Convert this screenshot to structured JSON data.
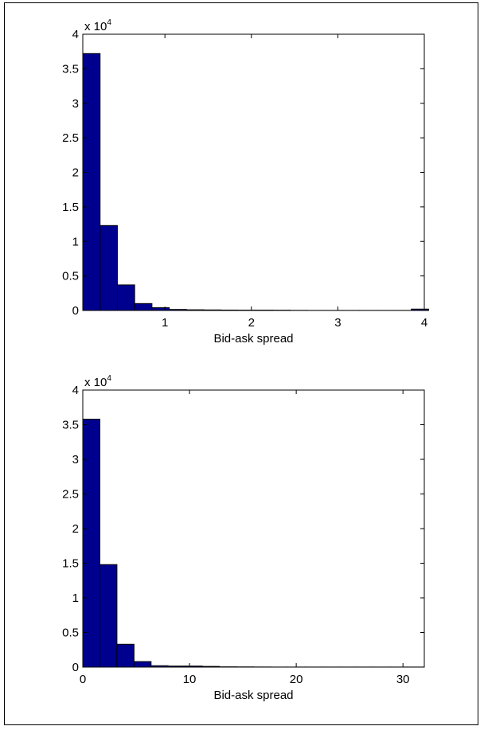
{
  "chart_data": [
    {
      "type": "bar",
      "xlabel": "Bid-ask spread",
      "ylabel": "",
      "title": "",
      "xlim": [
        0.05,
        4.0
      ],
      "ylim": [
        0,
        4
      ],
      "y_multiplier": {
        "base": "x 10",
        "exponent": "4"
      },
      "x_ticks": [
        1,
        2,
        3,
        4
      ],
      "x_tick_labels": [
        "1",
        "2",
        "3",
        "4"
      ],
      "y_ticks": [
        0,
        0.5,
        1,
        1.5,
        2,
        2.5,
        3,
        3.5,
        4
      ],
      "y_tick_labels": [
        "0",
        "0.5",
        "1",
        "1.5",
        "2",
        "2.5",
        "3",
        "3.5",
        "4"
      ],
      "bin_width": 0.2,
      "bin_starts": [
        0.05,
        0.25,
        0.45,
        0.65,
        0.85,
        1.05,
        1.25,
        1.45,
        1.65,
        1.85,
        2.05,
        2.25,
        2.45,
        2.65,
        2.85,
        3.05,
        3.25,
        3.45,
        3.65,
        3.85
      ],
      "values": [
        3.72,
        1.23,
        0.37,
        0.1,
        0.04,
        0.015,
        0.01,
        0.008,
        0.006,
        0.005,
        0.005,
        0.004,
        0.002,
        0.001,
        0.001,
        0.001,
        0.001,
        0.001,
        0.001,
        0.02
      ],
      "bar_color": "#00008F",
      "grid": false
    },
    {
      "type": "bar",
      "xlabel": "Bid-ask spread",
      "ylabel": "",
      "title": "",
      "xlim": [
        0,
        32
      ],
      "ylim": [
        0,
        4
      ],
      "y_multiplier": {
        "base": "x 10",
        "exponent": "4"
      },
      "x_ticks": [
        0,
        10,
        20,
        30
      ],
      "x_tick_labels": [
        "0",
        "10",
        "20",
        "30"
      ],
      "y_ticks": [
        0,
        0.5,
        1,
        1.5,
        2,
        2.5,
        3,
        3.5,
        4
      ],
      "y_tick_labels": [
        "0",
        "0.5",
        "1",
        "1.5",
        "2",
        "2.5",
        "3",
        "3.5",
        "4"
      ],
      "bin_width": 1.6,
      "bin_starts": [
        0,
        1.6,
        3.2,
        4.8,
        6.4,
        8.0,
        9.6,
        11.2,
        12.8,
        14.4,
        16.0,
        17.6,
        19.2,
        20.8,
        22.4,
        24.0,
        25.6,
        27.2,
        28.8,
        30.4
      ],
      "values": [
        3.58,
        1.48,
        0.33,
        0.08,
        0.02,
        0.015,
        0.015,
        0.01,
        0.004,
        0.003,
        0.002,
        0.001,
        0.001,
        0.001,
        0.001,
        0.001,
        0.001,
        0.001,
        0.001,
        0.001
      ],
      "bar_color": "#00008F",
      "grid": false
    }
  ]
}
